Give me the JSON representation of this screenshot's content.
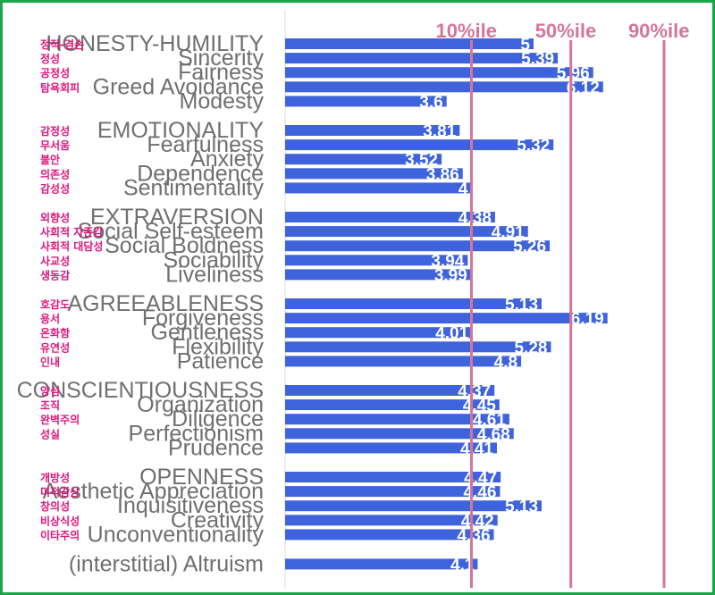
{
  "colors": {
    "bar": "#3f63dd",
    "percentile_line": "#d6759a",
    "english_label": "#6f6f6f",
    "korean_label": "#e0157a",
    "value_text": "#ffffff",
    "frame": "#1aa64a",
    "axis_line": "#dddddd"
  },
  "chart_data": {
    "type": "bar",
    "orientation": "horizontal",
    "xlim": [
      1,
      7
    ],
    "grid": false,
    "reference_lines": [
      {
        "label": "10%ile",
        "x": 4.0
      },
      {
        "label": "50%ile",
        "x": 5.6
      },
      {
        "label": "90%ile",
        "x": 7.1
      }
    ],
    "groups": [
      {
        "name": "HONESTY-HUMILITY",
        "korean": "정직-겸손",
        "value": 5.0,
        "facets": [
          {
            "name": "Sincerity",
            "korean": "정성",
            "value": 5.39
          },
          {
            "name": "Fairness",
            "korean": "공정성",
            "value": 5.96
          },
          {
            "name": "Greed Avoidance",
            "korean": "탐욕회피",
            "value": 6.12
          },
          {
            "name": "Modesty",
            "korean": "",
            "value": 3.6
          }
        ]
      },
      {
        "name": "EMOTIONALITY",
        "korean": "감정성",
        "value": 3.81,
        "facets": [
          {
            "name": "Fearfulness",
            "korean": "무서움",
            "value": 5.32
          },
          {
            "name": "Anxiety",
            "korean": "불안",
            "value": 3.52
          },
          {
            "name": "Dependence",
            "korean": "의존성",
            "value": 3.86
          },
          {
            "name": "Sentimentality",
            "korean": "감성성",
            "value": 4.0
          }
        ]
      },
      {
        "name": "EXTRAVERSION",
        "korean": "외향성",
        "value": 4.38,
        "facets": [
          {
            "name": "Social Self-esteem",
            "korean": "사회적 자존감",
            "value": 4.91
          },
          {
            "name": "Social Boldness",
            "korean": "사회적 대담성",
            "value": 5.26
          },
          {
            "name": "Sociability",
            "korean": "사교성",
            "value": 3.94
          },
          {
            "name": "Liveliness",
            "korean": "생동감",
            "value": 3.99
          }
        ]
      },
      {
        "name": "AGREEABLENESS",
        "korean": "호감도",
        "value": 5.13,
        "facets": [
          {
            "name": "Forgiveness",
            "korean": "용서",
            "value": 6.19
          },
          {
            "name": "Gentleness",
            "korean": "온화함",
            "value": 4.01
          },
          {
            "name": "Flexibility",
            "korean": "유연성",
            "value": 5.28
          },
          {
            "name": "Patience",
            "korean": "인내",
            "value": 4.8
          }
        ]
      },
      {
        "name": "CONSCIENTIOUSNESS",
        "korean": "양심",
        "value": 4.37,
        "facets": [
          {
            "name": "Organization",
            "korean": "조직",
            "value": 4.45
          },
          {
            "name": "Diligence",
            "korean": "완벽주의",
            "value": 4.61
          },
          {
            "name": "Perfectionism",
            "korean": "성실",
            "value": 4.68
          },
          {
            "name": "Prudence",
            "korean": "",
            "value": 4.41
          }
        ]
      },
      {
        "name": "OPENNESS",
        "korean": "개방성",
        "value": 4.47,
        "facets": [
          {
            "name": "Aesthetic Appreciation",
            "korean": "미적감상",
            "value": 4.46
          },
          {
            "name": "Inquisitiveness",
            "korean": "창의성",
            "value": 5.13
          },
          {
            "name": "Creativity",
            "korean": "비상식성",
            "value": 4.42
          },
          {
            "name": "Unconventionality",
            "korean": "이타주의",
            "value": 4.36
          }
        ]
      }
    ],
    "extra": {
      "name": "(interstitial) Altruism",
      "value": 4.1
    }
  }
}
